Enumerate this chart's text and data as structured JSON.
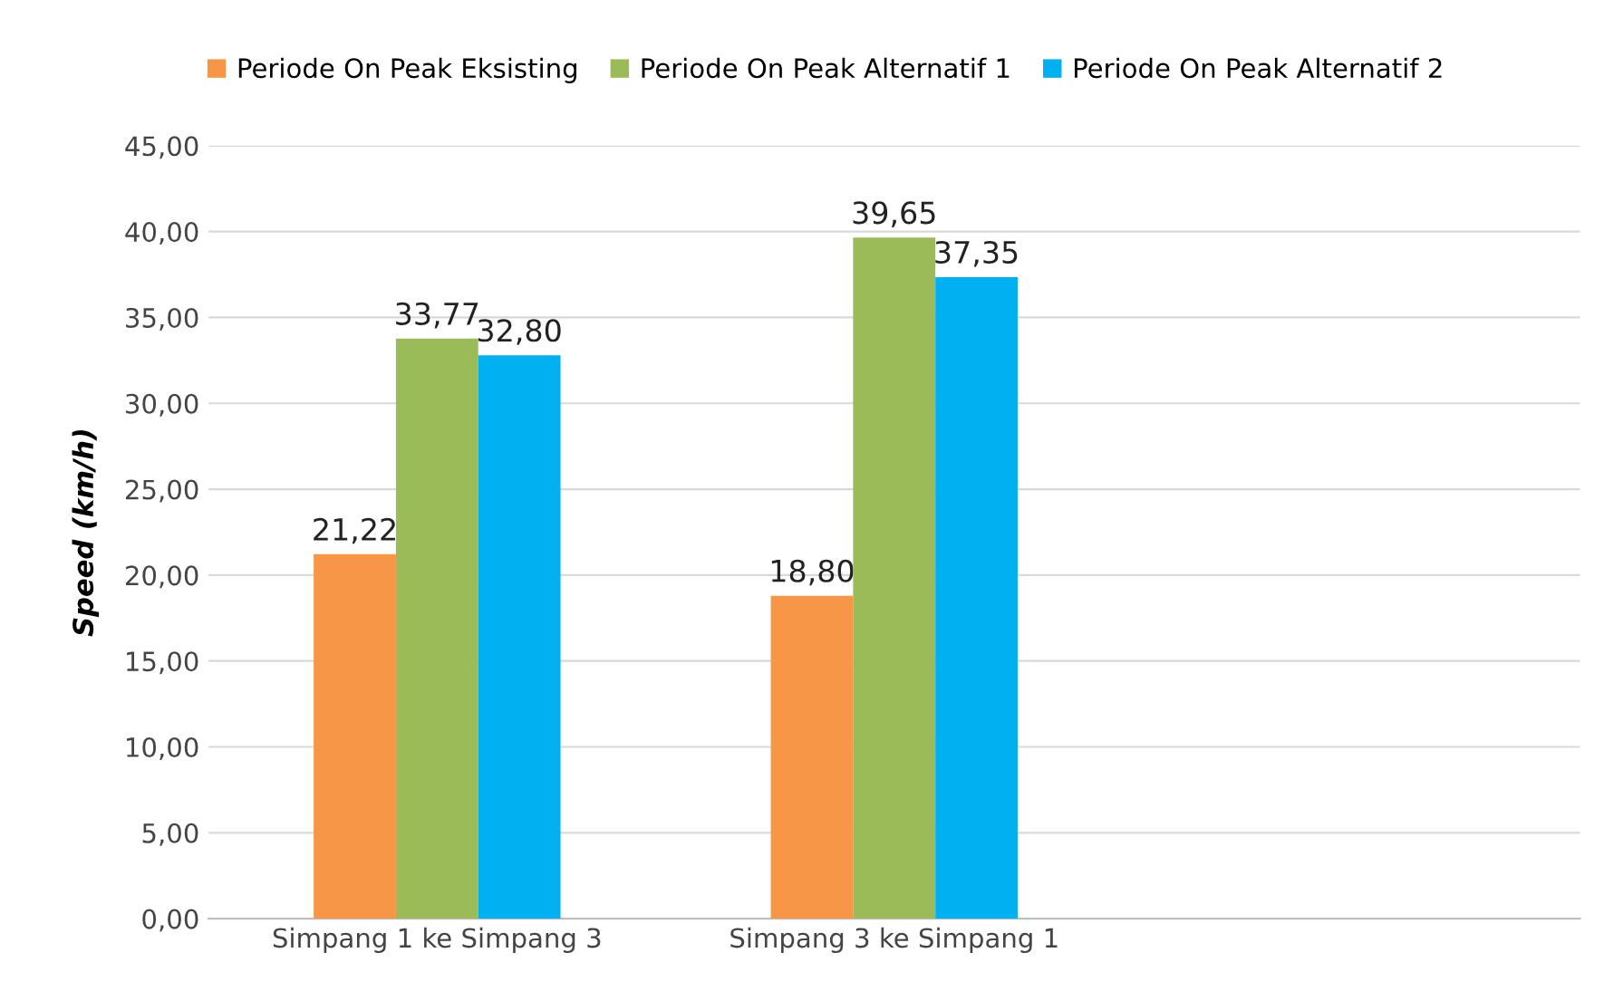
{
  "chart_data": {
    "type": "bar",
    "ylabel": "Speed (km/h)",
    "categories": [
      "Simpang 1 ke Simpang 3",
      "Simpang 3 ke Simpang 1",
      null
    ],
    "series": [
      {
        "name": "Periode On Peak Eksisting",
        "color": "#f79646",
        "values": [
          21.22,
          18.8,
          null
        ],
        "value_labels": [
          "21,22",
          "18,80",
          null
        ]
      },
      {
        "name": "Periode On Peak Alternatif 1",
        "color": "#9bbb59",
        "values": [
          33.77,
          39.65,
          null
        ],
        "value_labels": [
          "33,77",
          "39,65",
          null
        ]
      },
      {
        "name": "Periode On Peak Alternatif 2",
        "color": "#00b0f0",
        "values": [
          32.8,
          37.35,
          null
        ],
        "value_labels": [
          "32,80",
          "37,35",
          null
        ]
      }
    ],
    "ylim": [
      0,
      45
    ],
    "yticks": [
      {
        "value": 0,
        "label": "0,00"
      },
      {
        "value": 5,
        "label": "5,00"
      },
      {
        "value": 10,
        "label": "10,00"
      },
      {
        "value": 15,
        "label": "15,00"
      },
      {
        "value": 20,
        "label": "20,00"
      },
      {
        "value": 25,
        "label": "25,00"
      },
      {
        "value": 30,
        "label": "30,00"
      },
      {
        "value": 35,
        "label": "35,00"
      },
      {
        "value": 40,
        "label": "40,00"
      },
      {
        "value": 45,
        "label": "45,00"
      }
    ],
    "grid": "y",
    "legend": "top"
  }
}
